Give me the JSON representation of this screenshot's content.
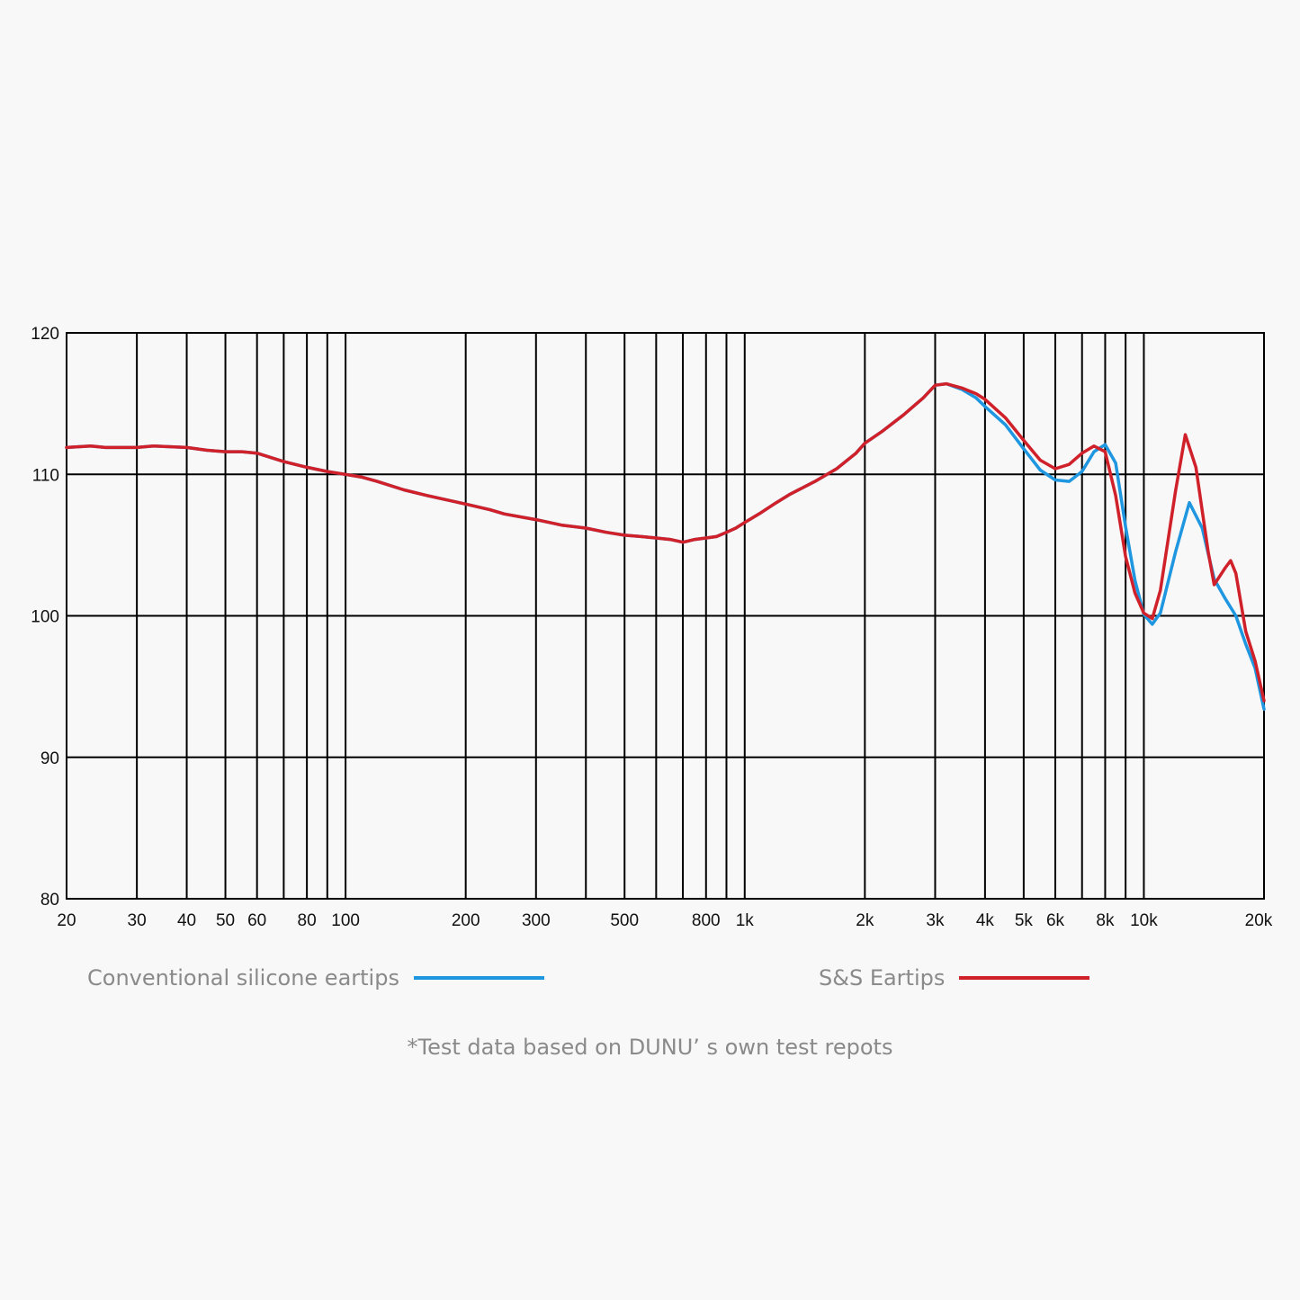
{
  "chart_data": {
    "type": "line",
    "title": "",
    "xlabel": "",
    "ylabel": "",
    "xscale": "log",
    "xlim": [
      20,
      20000
    ],
    "ylim": [
      80,
      120
    ],
    "grid": true,
    "legend_position": "bottom",
    "x_ticks": [
      {
        "value": 20,
        "label": "20"
      },
      {
        "value": 30,
        "label": "30"
      },
      {
        "value": 40,
        "label": "40"
      },
      {
        "value": 50,
        "label": "50"
      },
      {
        "value": 60,
        "label": "60"
      },
      {
        "value": 80,
        "label": "80"
      },
      {
        "value": 100,
        "label": "100"
      },
      {
        "value": 200,
        "label": "200"
      },
      {
        "value": 300,
        "label": "300"
      },
      {
        "value": 500,
        "label": "500"
      },
      {
        "value": 800,
        "label": "800"
      },
      {
        "value": 1000,
        "label": "1k"
      },
      {
        "value": 2000,
        "label": "2k"
      },
      {
        "value": 3000,
        "label": "3k"
      },
      {
        "value": 4000,
        "label": "4k"
      },
      {
        "value": 5000,
        "label": "5k"
      },
      {
        "value": 6000,
        "label": "6k"
      },
      {
        "value": 8000,
        "label": "8k"
      },
      {
        "value": 10000,
        "label": "10k"
      },
      {
        "value": 20000,
        "label": "20k"
      }
    ],
    "x_gridlines": [
      30,
      40,
      50,
      60,
      70,
      80,
      90,
      100,
      200,
      300,
      400,
      500,
      600,
      700,
      800,
      900,
      1000,
      2000,
      3000,
      4000,
      5000,
      6000,
      7000,
      8000,
      9000,
      10000
    ],
    "y_ticks": [
      {
        "value": 80,
        "label": "80"
      },
      {
        "value": 90,
        "label": "90"
      },
      {
        "value": 100,
        "label": "100"
      },
      {
        "value": 110,
        "label": "110"
      },
      {
        "value": 120,
        "label": "120"
      }
    ],
    "series": [
      {
        "name": "Conventional silicone eartips",
        "color": "#1e96e0",
        "points": [
          [
            20,
            111.9
          ],
          [
            23,
            112.0
          ],
          [
            25,
            111.9
          ],
          [
            30,
            111.9
          ],
          [
            33,
            112.0
          ],
          [
            40,
            111.9
          ],
          [
            45,
            111.7
          ],
          [
            50,
            111.6
          ],
          [
            55,
            111.6
          ],
          [
            60,
            111.5
          ],
          [
            70,
            110.9
          ],
          [
            80,
            110.5
          ],
          [
            90,
            110.2
          ],
          [
            100,
            110.0
          ],
          [
            110,
            109.8
          ],
          [
            120,
            109.5
          ],
          [
            140,
            108.9
          ],
          [
            160,
            108.5
          ],
          [
            200,
            107.9
          ],
          [
            230,
            107.5
          ],
          [
            250,
            107.2
          ],
          [
            300,
            106.8
          ],
          [
            350,
            106.4
          ],
          [
            400,
            106.2
          ],
          [
            450,
            105.9
          ],
          [
            500,
            105.7
          ],
          [
            550,
            105.6
          ],
          [
            600,
            105.5
          ],
          [
            650,
            105.4
          ],
          [
            700,
            105.2
          ],
          [
            750,
            105.4
          ],
          [
            800,
            105.5
          ],
          [
            850,
            105.6
          ],
          [
            900,
            105.9
          ],
          [
            950,
            106.2
          ],
          [
            1000,
            106.6
          ],
          [
            1100,
            107.3
          ],
          [
            1200,
            108.0
          ],
          [
            1300,
            108.6
          ],
          [
            1500,
            109.5
          ],
          [
            1700,
            110.4
          ],
          [
            1900,
            111.5
          ],
          [
            2000,
            112.2
          ],
          [
            2200,
            113.0
          ],
          [
            2500,
            114.2
          ],
          [
            2800,
            115.4
          ],
          [
            3000,
            116.3
          ],
          [
            3200,
            116.4
          ],
          [
            3500,
            116.0
          ],
          [
            3800,
            115.4
          ],
          [
            4000,
            114.8
          ],
          [
            4500,
            113.5
          ],
          [
            5000,
            111.8
          ],
          [
            5500,
            110.3
          ],
          [
            6000,
            109.6
          ],
          [
            6500,
            109.5
          ],
          [
            7000,
            110.2
          ],
          [
            7500,
            111.6
          ],
          [
            8000,
            112.1
          ],
          [
            8500,
            110.8
          ],
          [
            9000,
            106.3
          ],
          [
            9500,
            102.5
          ],
          [
            10000,
            100.1
          ],
          [
            10500,
            99.4
          ],
          [
            11000,
            100.2
          ],
          [
            12000,
            104.5
          ],
          [
            13000,
            108.0
          ],
          [
            14000,
            106.2
          ],
          [
            15000,
            102.6
          ],
          [
            16000,
            101.2
          ],
          [
            17000,
            100.0
          ],
          [
            18000,
            98.0
          ],
          [
            19000,
            96.3
          ],
          [
            20000,
            93.4
          ]
        ]
      },
      {
        "name": "S&S Eartips",
        "color": "#d0202a",
        "points": [
          [
            20,
            111.9
          ],
          [
            23,
            112.0
          ],
          [
            25,
            111.9
          ],
          [
            30,
            111.9
          ],
          [
            33,
            112.0
          ],
          [
            40,
            111.9
          ],
          [
            45,
            111.7
          ],
          [
            50,
            111.6
          ],
          [
            55,
            111.6
          ],
          [
            60,
            111.5
          ],
          [
            70,
            110.9
          ],
          [
            80,
            110.5
          ],
          [
            90,
            110.2
          ],
          [
            100,
            110.0
          ],
          [
            110,
            109.8
          ],
          [
            120,
            109.5
          ],
          [
            140,
            108.9
          ],
          [
            160,
            108.5
          ],
          [
            200,
            107.9
          ],
          [
            230,
            107.5
          ],
          [
            250,
            107.2
          ],
          [
            300,
            106.8
          ],
          [
            350,
            106.4
          ],
          [
            400,
            106.2
          ],
          [
            450,
            105.9
          ],
          [
            500,
            105.7
          ],
          [
            550,
            105.6
          ],
          [
            600,
            105.5
          ],
          [
            650,
            105.4
          ],
          [
            700,
            105.2
          ],
          [
            750,
            105.4
          ],
          [
            800,
            105.5
          ],
          [
            850,
            105.6
          ],
          [
            900,
            105.9
          ],
          [
            950,
            106.2
          ],
          [
            1000,
            106.6
          ],
          [
            1100,
            107.3
          ],
          [
            1200,
            108.0
          ],
          [
            1300,
            108.6
          ],
          [
            1500,
            109.5
          ],
          [
            1700,
            110.4
          ],
          [
            1900,
            111.5
          ],
          [
            2000,
            112.2
          ],
          [
            2200,
            113.0
          ],
          [
            2500,
            114.2
          ],
          [
            2800,
            115.4
          ],
          [
            3000,
            116.3
          ],
          [
            3200,
            116.4
          ],
          [
            3500,
            116.1
          ],
          [
            3800,
            115.7
          ],
          [
            4000,
            115.3
          ],
          [
            4500,
            114.0
          ],
          [
            5000,
            112.4
          ],
          [
            5500,
            111.0
          ],
          [
            6000,
            110.4
          ],
          [
            6500,
            110.7
          ],
          [
            7000,
            111.5
          ],
          [
            7500,
            112.0
          ],
          [
            8000,
            111.6
          ],
          [
            8500,
            108.5
          ],
          [
            9000,
            104.2
          ],
          [
            9500,
            101.6
          ],
          [
            10000,
            100.2
          ],
          [
            10500,
            99.8
          ],
          [
            11000,
            101.8
          ],
          [
            12000,
            108.8
          ],
          [
            12700,
            112.8
          ],
          [
            13500,
            110.5
          ],
          [
            14500,
            104.5
          ],
          [
            15000,
            102.2
          ],
          [
            16000,
            103.4
          ],
          [
            16500,
            103.9
          ],
          [
            17000,
            103.0
          ],
          [
            18000,
            98.9
          ],
          [
            19000,
            96.8
          ],
          [
            20000,
            94.0
          ]
        ]
      }
    ]
  },
  "legend": {
    "blue_label": "Conventional silicone eartips",
    "red_label": "S&S Eartips"
  },
  "footnote": "*Test data based on DUNU’ s own test repots"
}
